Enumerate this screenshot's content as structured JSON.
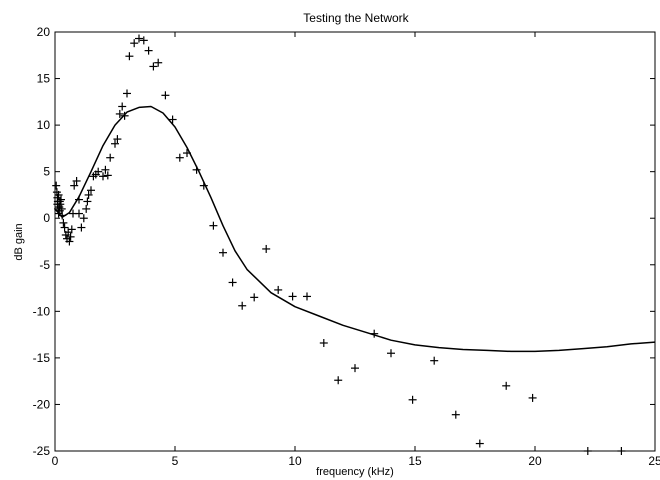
{
  "chart_data": {
    "type": "scatter",
    "title": "Testing the Network",
    "xlabel": "frequency (kHz)",
    "ylabel": "dB gain",
    "xlim": [
      0,
      25
    ],
    "ylim": [
      -25,
      20
    ],
    "xticks": [
      0,
      5,
      10,
      15,
      20,
      25
    ],
    "yticks": [
      -25,
      -20,
      -15,
      -10,
      -5,
      0,
      5,
      10,
      15,
      20
    ],
    "xtick_labels": [
      "0",
      "5",
      "10",
      "15",
      "20",
      "25"
    ],
    "ytick_labels": [
      "-25",
      "-20",
      "-15",
      "-10",
      "-5",
      "0",
      "5",
      "10",
      "15",
      "20"
    ],
    "grid": false,
    "series": [
      {
        "type": "scatter",
        "marker": "+",
        "color": "#000000",
        "x": [
          0.05,
          0.08,
          0.1,
          0.1,
          0.12,
          0.13,
          0.15,
          0.15,
          0.18,
          0.2,
          0.2,
          0.22,
          0.25,
          0.28,
          0.3,
          0.35,
          0.4,
          0.45,
          0.5,
          0.55,
          0.6,
          0.65,
          0.7,
          0.75,
          0.8,
          0.9,
          1.0,
          1.0,
          1.1,
          1.2,
          1.3,
          1.35,
          1.4,
          1.5,
          1.6,
          1.7,
          1.8,
          2.0,
          2.1,
          2.2,
          2.3,
          2.5,
          2.6,
          2.7,
          2.8,
          2.9,
          3.0,
          3.1,
          3.3,
          3.5,
          3.7,
          3.9,
          4.1,
          4.3,
          4.6,
          4.9,
          5.2,
          5.5,
          5.9,
          6.2,
          6.6,
          7.0,
          7.4,
          7.8,
          8.3,
          8.8,
          9.3,
          9.9,
          10.5,
          11.2,
          11.8,
          12.5,
          13.3,
          14.0,
          14.9,
          15.8,
          16.7,
          17.7,
          18.8,
          19.9,
          22.2,
          23.6
        ],
        "y": [
          3.5,
          2.8,
          2.2,
          1.5,
          1.8,
          1.0,
          0.5,
          2.5,
          1.2,
          1.8,
          0.8,
          1.5,
          2.0,
          1.0,
          0.3,
          -0.5,
          -1.0,
          -1.8,
          -2.2,
          -1.5,
          -2.5,
          -2.0,
          -1.2,
          0.5,
          3.5,
          4.0,
          2.0,
          0.5,
          -1.0,
          0.0,
          1.0,
          1.8,
          2.5,
          3.0,
          4.5,
          4.7,
          5.0,
          4.5,
          5.2,
          4.6,
          6.5,
          8.0,
          8.5,
          11.2,
          12.0,
          11.0,
          13.4,
          17.4,
          18.8,
          19.3,
          19.1,
          18.0,
          16.3,
          16.7,
          13.2,
          10.6,
          6.5,
          7.0,
          5.2,
          3.5,
          -0.8,
          -3.7,
          -6.9,
          -9.4,
          -8.5,
          -3.3,
          -7.7,
          -8.4,
          -8.4,
          -13.4,
          -17.4,
          -16.1,
          -12.4,
          -14.5,
          -19.5,
          -15.3,
          -21.1,
          -24.2,
          -18.0,
          -19.3,
          -25.0,
          -25.0
        ]
      },
      {
        "type": "line",
        "color": "#000000",
        "x": [
          0.0,
          0.3,
          0.6,
          1.0,
          1.5,
          2.0,
          2.5,
          3.0,
          3.5,
          4.0,
          4.5,
          5.0,
          5.5,
          6.0,
          6.5,
          7.0,
          7.5,
          8.0,
          9.0,
          10.0,
          11.0,
          12.0,
          13.0,
          14.0,
          15.0,
          16.0,
          17.0,
          18.0,
          19.0,
          20.0,
          21.0,
          22.0,
          23.0,
          24.0,
          25.0
        ],
        "y": [
          1.0,
          0.1,
          0.6,
          2.3,
          5.0,
          7.8,
          10.0,
          11.4,
          11.9,
          12.0,
          11.3,
          9.8,
          7.6,
          5.0,
          2.2,
          -0.8,
          -3.5,
          -5.5,
          -8.0,
          -9.5,
          -10.5,
          -11.5,
          -12.3,
          -13.1,
          -13.6,
          -13.9,
          -14.1,
          -14.2,
          -14.3,
          -14.3,
          -14.2,
          -14.0,
          -13.8,
          -13.5,
          -13.3
        ]
      }
    ]
  }
}
